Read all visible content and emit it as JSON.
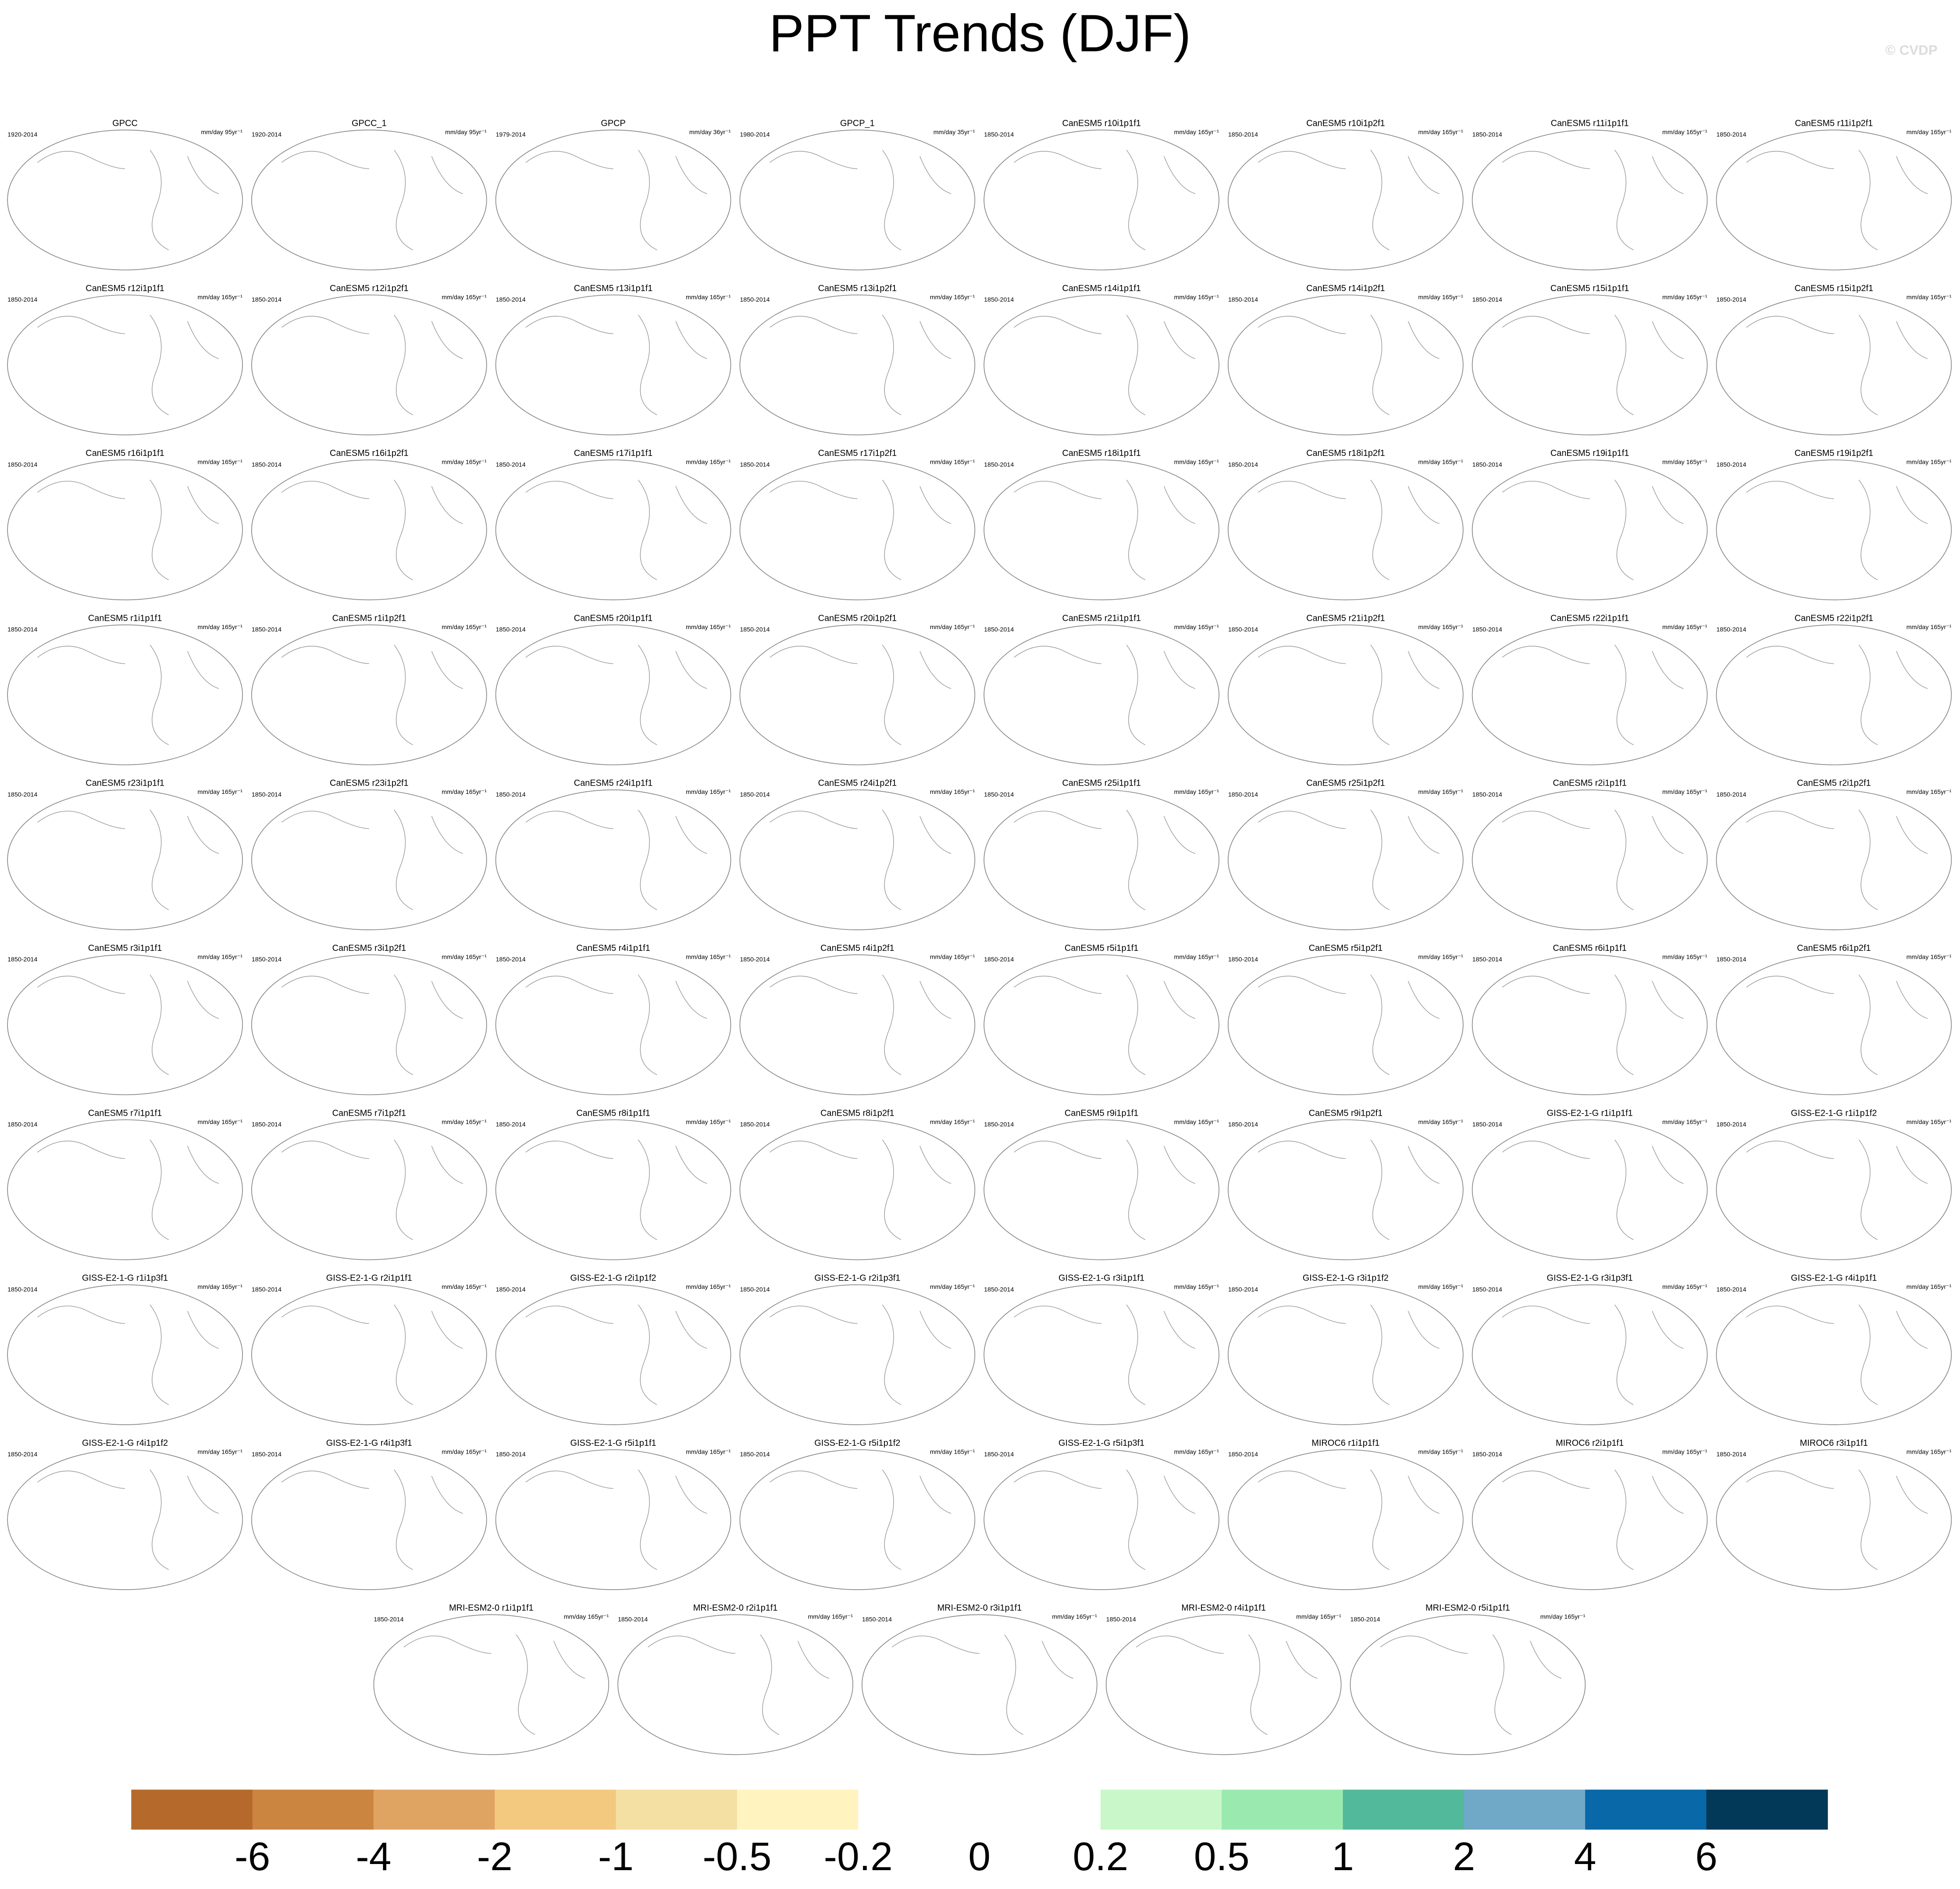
{
  "header": {
    "title": "PPT Trends (DJF)",
    "credit": "© CVDP"
  },
  "panels": [
    {
      "title": "GPCC",
      "period": "1920-2014",
      "units": "mm/day 95yr⁻¹"
    },
    {
      "title": "GPCC_1",
      "period": "1920-2014",
      "units": "mm/day 95yr⁻¹"
    },
    {
      "title": "GPCP",
      "period": "1979-2014",
      "units": "mm/day 36yr⁻¹"
    },
    {
      "title": "GPCP_1",
      "period": "1980-2014",
      "units": "mm/day 35yr⁻¹"
    },
    {
      "title": "CanESM5 r10i1p1f1",
      "period": "1850-2014",
      "units": "mm/day 165yr⁻¹"
    },
    {
      "title": "CanESM5 r10i1p2f1",
      "period": "1850-2014",
      "units": "mm/day 165yr⁻¹"
    },
    {
      "title": "CanESM5 r11i1p1f1",
      "period": "1850-2014",
      "units": "mm/day 165yr⁻¹"
    },
    {
      "title": "CanESM5 r11i1p2f1",
      "period": "1850-2014",
      "units": "mm/day 165yr⁻¹"
    },
    {
      "title": "CanESM5 r12i1p1f1",
      "period": "1850-2014",
      "units": "mm/day 165yr⁻¹"
    },
    {
      "title": "CanESM5 r12i1p2f1",
      "period": "1850-2014",
      "units": "mm/day 165yr⁻¹"
    },
    {
      "title": "CanESM5 r13i1p1f1",
      "period": "1850-2014",
      "units": "mm/day 165yr⁻¹"
    },
    {
      "title": "CanESM5 r13i1p2f1",
      "period": "1850-2014",
      "units": "mm/day 165yr⁻¹"
    },
    {
      "title": "CanESM5 r14i1p1f1",
      "period": "1850-2014",
      "units": "mm/day 165yr⁻¹"
    },
    {
      "title": "CanESM5 r14i1p2f1",
      "period": "1850-2014",
      "units": "mm/day 165yr⁻¹"
    },
    {
      "title": "CanESM5 r15i1p1f1",
      "period": "1850-2014",
      "units": "mm/day 165yr⁻¹"
    },
    {
      "title": "CanESM5 r15i1p2f1",
      "period": "1850-2014",
      "units": "mm/day 165yr⁻¹"
    },
    {
      "title": "CanESM5 r16i1p1f1",
      "period": "1850-2014",
      "units": "mm/day 165yr⁻¹"
    },
    {
      "title": "CanESM5 r16i1p2f1",
      "period": "1850-2014",
      "units": "mm/day 165yr⁻¹"
    },
    {
      "title": "CanESM5 r17i1p1f1",
      "period": "1850-2014",
      "units": "mm/day 165yr⁻¹"
    },
    {
      "title": "CanESM5 r17i1p2f1",
      "period": "1850-2014",
      "units": "mm/day 165yr⁻¹"
    },
    {
      "title": "CanESM5 r18i1p1f1",
      "period": "1850-2014",
      "units": "mm/day 165yr⁻¹"
    },
    {
      "title": "CanESM5 r18i1p2f1",
      "period": "1850-2014",
      "units": "mm/day 165yr⁻¹"
    },
    {
      "title": "CanESM5 r19i1p1f1",
      "period": "1850-2014",
      "units": "mm/day 165yr⁻¹"
    },
    {
      "title": "CanESM5 r19i1p2f1",
      "period": "1850-2014",
      "units": "mm/day 165yr⁻¹"
    },
    {
      "title": "CanESM5 r1i1p1f1",
      "period": "1850-2014",
      "units": "mm/day 165yr⁻¹"
    },
    {
      "title": "CanESM5 r1i1p2f1",
      "period": "1850-2014",
      "units": "mm/day 165yr⁻¹"
    },
    {
      "title": "CanESM5 r20i1p1f1",
      "period": "1850-2014",
      "units": "mm/day 165yr⁻¹"
    },
    {
      "title": "CanESM5 r20i1p2f1",
      "period": "1850-2014",
      "units": "mm/day 165yr⁻¹"
    },
    {
      "title": "CanESM5 r21i1p1f1",
      "period": "1850-2014",
      "units": "mm/day 165yr⁻¹"
    },
    {
      "title": "CanESM5 r21i1p2f1",
      "period": "1850-2014",
      "units": "mm/day 165yr⁻¹"
    },
    {
      "title": "CanESM5 r22i1p1f1",
      "period": "1850-2014",
      "units": "mm/day 165yr⁻¹"
    },
    {
      "title": "CanESM5 r22i1p2f1",
      "period": "1850-2014",
      "units": "mm/day 165yr⁻¹"
    },
    {
      "title": "CanESM5 r23i1p1f1",
      "period": "1850-2014",
      "units": "mm/day 165yr⁻¹"
    },
    {
      "title": "CanESM5 r23i1p2f1",
      "period": "1850-2014",
      "units": "mm/day 165yr⁻¹"
    },
    {
      "title": "CanESM5 r24i1p1f1",
      "period": "1850-2014",
      "units": "mm/day 165yr⁻¹"
    },
    {
      "title": "CanESM5 r24i1p2f1",
      "period": "1850-2014",
      "units": "mm/day 165yr⁻¹"
    },
    {
      "title": "CanESM5 r25i1p1f1",
      "period": "1850-2014",
      "units": "mm/day 165yr⁻¹"
    },
    {
      "title": "CanESM5 r25i1p2f1",
      "period": "1850-2014",
      "units": "mm/day 165yr⁻¹"
    },
    {
      "title": "CanESM5 r2i1p1f1",
      "period": "1850-2014",
      "units": "mm/day 165yr⁻¹"
    },
    {
      "title": "CanESM5 r2i1p2f1",
      "period": "1850-2014",
      "units": "mm/day 165yr⁻¹"
    },
    {
      "title": "CanESM5 r3i1p1f1",
      "period": "1850-2014",
      "units": "mm/day 165yr⁻¹"
    },
    {
      "title": "CanESM5 r3i1p2f1",
      "period": "1850-2014",
      "units": "mm/day 165yr⁻¹"
    },
    {
      "title": "CanESM5 r4i1p1f1",
      "period": "1850-2014",
      "units": "mm/day 165yr⁻¹"
    },
    {
      "title": "CanESM5 r4i1p2f1",
      "period": "1850-2014",
      "units": "mm/day 165yr⁻¹"
    },
    {
      "title": "CanESM5 r5i1p1f1",
      "period": "1850-2014",
      "units": "mm/day 165yr⁻¹"
    },
    {
      "title": "CanESM5 r5i1p2f1",
      "period": "1850-2014",
      "units": "mm/day 165yr⁻¹"
    },
    {
      "title": "CanESM5 r6i1p1f1",
      "period": "1850-2014",
      "units": "mm/day 165yr⁻¹"
    },
    {
      "title": "CanESM5 r6i1p2f1",
      "period": "1850-2014",
      "units": "mm/day 165yr⁻¹"
    },
    {
      "title": "CanESM5 r7i1p1f1",
      "period": "1850-2014",
      "units": "mm/day 165yr⁻¹"
    },
    {
      "title": "CanESM5 r7i1p2f1",
      "period": "1850-2014",
      "units": "mm/day 165yr⁻¹"
    },
    {
      "title": "CanESM5 r8i1p1f1",
      "period": "1850-2014",
      "units": "mm/day 165yr⁻¹"
    },
    {
      "title": "CanESM5 r8i1p2f1",
      "period": "1850-2014",
      "units": "mm/day 165yr⁻¹"
    },
    {
      "title": "CanESM5 r9i1p1f1",
      "period": "1850-2014",
      "units": "mm/day 165yr⁻¹"
    },
    {
      "title": "CanESM5 r9i1p2f1",
      "period": "1850-2014",
      "units": "mm/day 165yr⁻¹"
    },
    {
      "title": "GISS-E2-1-G r1i1p1f1",
      "period": "1850-2014",
      "units": "mm/day 165yr⁻¹"
    },
    {
      "title": "GISS-E2-1-G r1i1p1f2",
      "period": "1850-2014",
      "units": "mm/day 165yr⁻¹"
    },
    {
      "title": "GISS-E2-1-G r1i1p3f1",
      "period": "1850-2014",
      "units": "mm/day 165yr⁻¹"
    },
    {
      "title": "GISS-E2-1-G r2i1p1f1",
      "period": "1850-2014",
      "units": "mm/day 165yr⁻¹"
    },
    {
      "title": "GISS-E2-1-G r2i1p1f2",
      "period": "1850-2014",
      "units": "mm/day 165yr⁻¹"
    },
    {
      "title": "GISS-E2-1-G r2i1p3f1",
      "period": "1850-2014",
      "units": "mm/day 165yr⁻¹"
    },
    {
      "title": "GISS-E2-1-G r3i1p1f1",
      "period": "1850-2014",
      "units": "mm/day 165yr⁻¹"
    },
    {
      "title": "GISS-E2-1-G r3i1p1f2",
      "period": "1850-2014",
      "units": "mm/day 165yr⁻¹"
    },
    {
      "title": "GISS-E2-1-G r3i1p3f1",
      "period": "1850-2014",
      "units": "mm/day 165yr⁻¹"
    },
    {
      "title": "GISS-E2-1-G r4i1p1f1",
      "period": "1850-2014",
      "units": "mm/day 165yr⁻¹"
    },
    {
      "title": "GISS-E2-1-G r4i1p1f2",
      "period": "1850-2014",
      "units": "mm/day 165yr⁻¹"
    },
    {
      "title": "GISS-E2-1-G r4i1p3f1",
      "period": "1850-2014",
      "units": "mm/day 165yr⁻¹"
    },
    {
      "title": "GISS-E2-1-G r5i1p1f1",
      "period": "1850-2014",
      "units": "mm/day 165yr⁻¹"
    },
    {
      "title": "GISS-E2-1-G r5i1p1f2",
      "period": "1850-2014",
      "units": "mm/day 165yr⁻¹"
    },
    {
      "title": "GISS-E2-1-G r5i1p3f1",
      "period": "1850-2014",
      "units": "mm/day 165yr⁻¹"
    },
    {
      "title": "MIROC6 r1i1p1f1",
      "period": "1850-2014",
      "units": "mm/day 165yr⁻¹"
    },
    {
      "title": "MIROC6 r2i1p1f1",
      "period": "1850-2014",
      "units": "mm/day 165yr⁻¹"
    },
    {
      "title": "MIROC6 r3i1p1f1",
      "period": "1850-2014",
      "units": "mm/day 165yr⁻¹"
    },
    {
      "title": "MRI-ESM2-0 r1i1p1f1",
      "period": "1850-2014",
      "units": "mm/day 165yr⁻¹"
    },
    {
      "title": "MRI-ESM2-0 r2i1p1f1",
      "period": "1850-2014",
      "units": "mm/day 165yr⁻¹"
    },
    {
      "title": "MRI-ESM2-0 r3i1p1f1",
      "period": "1850-2014",
      "units": "mm/day 165yr⁻¹"
    },
    {
      "title": "MRI-ESM2-0 r4i1p1f1",
      "period": "1850-2014",
      "units": "mm/day 165yr⁻¹"
    },
    {
      "title": "MRI-ESM2-0 r5i1p1f1",
      "period": "1850-2014",
      "units": "mm/day 165yr⁻¹"
    }
  ],
  "colorbar": {
    "colors": [
      "#b5692b",
      "#cc8540",
      "#e0a462",
      "#f2c97f",
      "#f4e0a2",
      "#fff3c0",
      "#ffffff",
      "#ffffff",
      "#c9f7c9",
      "#9aeab0",
      "#52b99a",
      "#70a8c8",
      "#0868a8",
      "#023858"
    ],
    "labels": [
      "-6",
      "-4",
      "-2",
      "-1",
      "-0.5",
      "-0.2",
      "0",
      "0.2",
      "0.5",
      "1",
      "2",
      "4",
      "6"
    ]
  }
}
